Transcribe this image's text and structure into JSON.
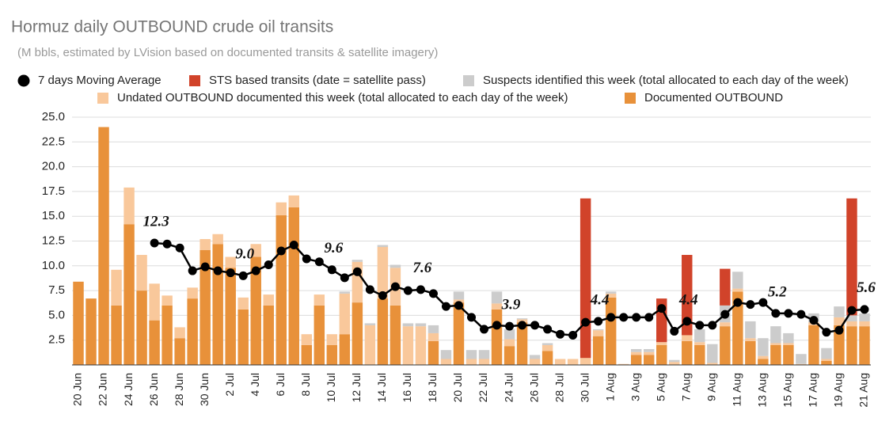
{
  "chart_data": {
    "type": "bar",
    "title": "Hormuz daily OUTBOUND crude oil transits",
    "subtitle": "(M bbls, estimated by LVision based on documented transits & satellite imagery)",
    "categories": [
      "20 Jun",
      null,
      "22 Jun",
      null,
      "24 Jun",
      null,
      "26 Jun",
      null,
      "28 Jun",
      null,
      "30 Jun",
      null,
      "2 Jul",
      null,
      "4 Jul",
      null,
      "6 Jul",
      null,
      "8 Jul",
      null,
      "10 Jul",
      null,
      "12 Jul",
      null,
      "14 Jul",
      null,
      "16 Jul",
      null,
      "18 Jul",
      null,
      "20 Jul",
      null,
      "22 Jul",
      null,
      "24 Jul",
      null,
      "26 Jul",
      null,
      "28 Jul",
      null,
      "30 Jul",
      null,
      "1 Aug",
      null,
      "3 Aug",
      null,
      "5 Aug",
      null,
      "7 Aug",
      null,
      "9 Aug",
      null,
      "11 Aug",
      null,
      "13 Aug",
      null,
      "15 Aug",
      null,
      "17 Aug",
      null,
      "19 Aug",
      null,
      "21 Aug"
    ],
    "stacked": true,
    "series": [
      {
        "name": "7 days Moving Average",
        "type": "line",
        "color": "#000000",
        "values": [
          null,
          null,
          null,
          null,
          null,
          null,
          12.3,
          12.2,
          11.8,
          9.5,
          9.9,
          9.5,
          9.3,
          9.0,
          9.5,
          10.1,
          11.5,
          12.1,
          10.7,
          10.4,
          9.6,
          8.8,
          9.4,
          7.6,
          7.0,
          7.9,
          7.5,
          7.6,
          7.2,
          5.9,
          6.0,
          4.8,
          3.6,
          4.0,
          3.9,
          4.0,
          4.0,
          3.6,
          3.1,
          3.0,
          4.3,
          4.4,
          4.8,
          4.8,
          4.8,
          4.8,
          5.7,
          3.4,
          4.4,
          4.0,
          4.0,
          5.1,
          6.3,
          6.1,
          6.3,
          5.2,
          5.2,
          5.1,
          4.5,
          3.3,
          3.5,
          5.5,
          5.6
        ],
        "value_labels": [
          null,
          null,
          null,
          null,
          null,
          null,
          "12.3",
          null,
          null,
          null,
          null,
          null,
          null,
          "9.0",
          null,
          null,
          null,
          null,
          null,
          null,
          "9.6",
          null,
          null,
          null,
          null,
          null,
          null,
          "7.6",
          null,
          null,
          null,
          null,
          null,
          null,
          "3.9",
          null,
          null,
          null,
          null,
          null,
          null,
          "4.4",
          null,
          null,
          null,
          null,
          null,
          null,
          "4.4",
          null,
          null,
          null,
          null,
          null,
          null,
          "5.2",
          null,
          null,
          null,
          null,
          null,
          null,
          "5.6"
        ]
      },
      {
        "name": "STS based transits (date = satellite pass)",
        "type": "bar",
        "color": "#d1432a",
        "values": [
          0,
          0,
          0,
          0,
          0,
          0,
          0,
          0,
          0,
          0,
          0,
          0,
          0,
          0,
          0,
          0,
          0,
          0,
          0,
          0,
          0,
          0,
          0,
          0,
          0,
          0,
          0,
          0,
          0,
          0,
          0,
          0,
          0,
          0,
          0,
          0,
          0,
          0,
          0,
          0,
          16.1,
          0,
          0,
          0,
          0,
          0,
          4.4,
          0,
          8.1,
          0,
          0,
          3.7,
          0,
          0,
          0,
          0,
          0,
          0,
          0,
          0,
          0,
          11.8,
          0
        ]
      },
      {
        "name": "Suspects identified this week (total allocated to each day of the week)",
        "type": "bar",
        "color": "#cccccc",
        "values": [
          0,
          0,
          0,
          0,
          0,
          0,
          0,
          0,
          0,
          0,
          0,
          0,
          0,
          0,
          0,
          0,
          0,
          0,
          0,
          0,
          0,
          0.2,
          0.2,
          0.2,
          0.2,
          0.3,
          0.3,
          0.3,
          0.8,
          0.9,
          0.8,
          0.9,
          0.9,
          1.2,
          1.0,
          0.1,
          0.4,
          0.2,
          0,
          0,
          0,
          0.1,
          0.2,
          0,
          0.3,
          0.3,
          0,
          0.2,
          0,
          1.3,
          1.9,
          1.7,
          1.7,
          1.7,
          1.8,
          1.7,
          1.0,
          1.0,
          0.9,
          1.1,
          1.1,
          0.6,
          0.8
        ]
      },
      {
        "name": "Undated OUTBOUND documented this week (total allocated to each day of the week)",
        "type": "bar",
        "color": "#f9c89b",
        "values": [
          0,
          0,
          0,
          3.6,
          3.7,
          3.6,
          3.7,
          1.0,
          1.1,
          1.1,
          1.1,
          1.0,
          1.1,
          1.2,
          1.3,
          1.1,
          1.3,
          1.2,
          1.1,
          1.1,
          1.1,
          4.1,
          4.1,
          4.0,
          5.2,
          3.8,
          3.9,
          3.9,
          0.8,
          0.6,
          0.3,
          0.6,
          0.6,
          0.6,
          0.7,
          0.3,
          0.6,
          0.6,
          0.6,
          0.6,
          0.7,
          0.6,
          0.4,
          0.1,
          0.3,
          0.3,
          0.3,
          0.3,
          0.6,
          0.3,
          0.2,
          0.4,
          0.3,
          0.3,
          0.3,
          0.2,
          0.2,
          0.1,
          0.3,
          0.2,
          0.8,
          0.5,
          0.5
        ]
      },
      {
        "name": "Documented OUTBOUND",
        "type": "bar",
        "color": "#e8913a",
        "values": [
          8.4,
          6.7,
          24.0,
          6.0,
          14.2,
          7.5,
          4.5,
          6.0,
          2.7,
          6.7,
          11.6,
          12.2,
          9.8,
          5.6,
          10.9,
          6.0,
          15.1,
          15.9,
          2.0,
          6.0,
          2.0,
          3.1,
          6.3,
          0,
          6.7,
          6.0,
          0,
          0,
          2.4,
          0,
          6.3,
          0,
          0,
          5.6,
          1.9,
          4.3,
          0,
          1.4,
          0,
          0,
          0,
          2.9,
          6.8,
          0,
          1.0,
          1.0,
          2.0,
          0,
          2.4,
          2.0,
          0,
          3.9,
          7.4,
          2.4,
          0.6,
          2.0,
          2.0,
          0,
          4.0,
          0.4,
          4.0,
          3.9,
          3.9
        ]
      }
    ],
    "ylim": [
      0,
      25
    ],
    "yticks": [
      {
        "value": 2.5,
        "label": "2.5"
      },
      {
        "value": 5,
        "label": "5.0"
      },
      {
        "value": 7.5,
        "label": "7.5"
      },
      {
        "value": 10,
        "label": "10.0"
      },
      {
        "value": 12.5,
        "label": "12.5"
      },
      {
        "value": 15,
        "label": "15.0"
      },
      {
        "value": 17.5,
        "label": "17.5"
      },
      {
        "value": 20,
        "label": "20.0"
      },
      {
        "value": 22.5,
        "label": "22.5"
      },
      {
        "value": 25,
        "label": "25.0"
      }
    ],
    "grid": true
  }
}
